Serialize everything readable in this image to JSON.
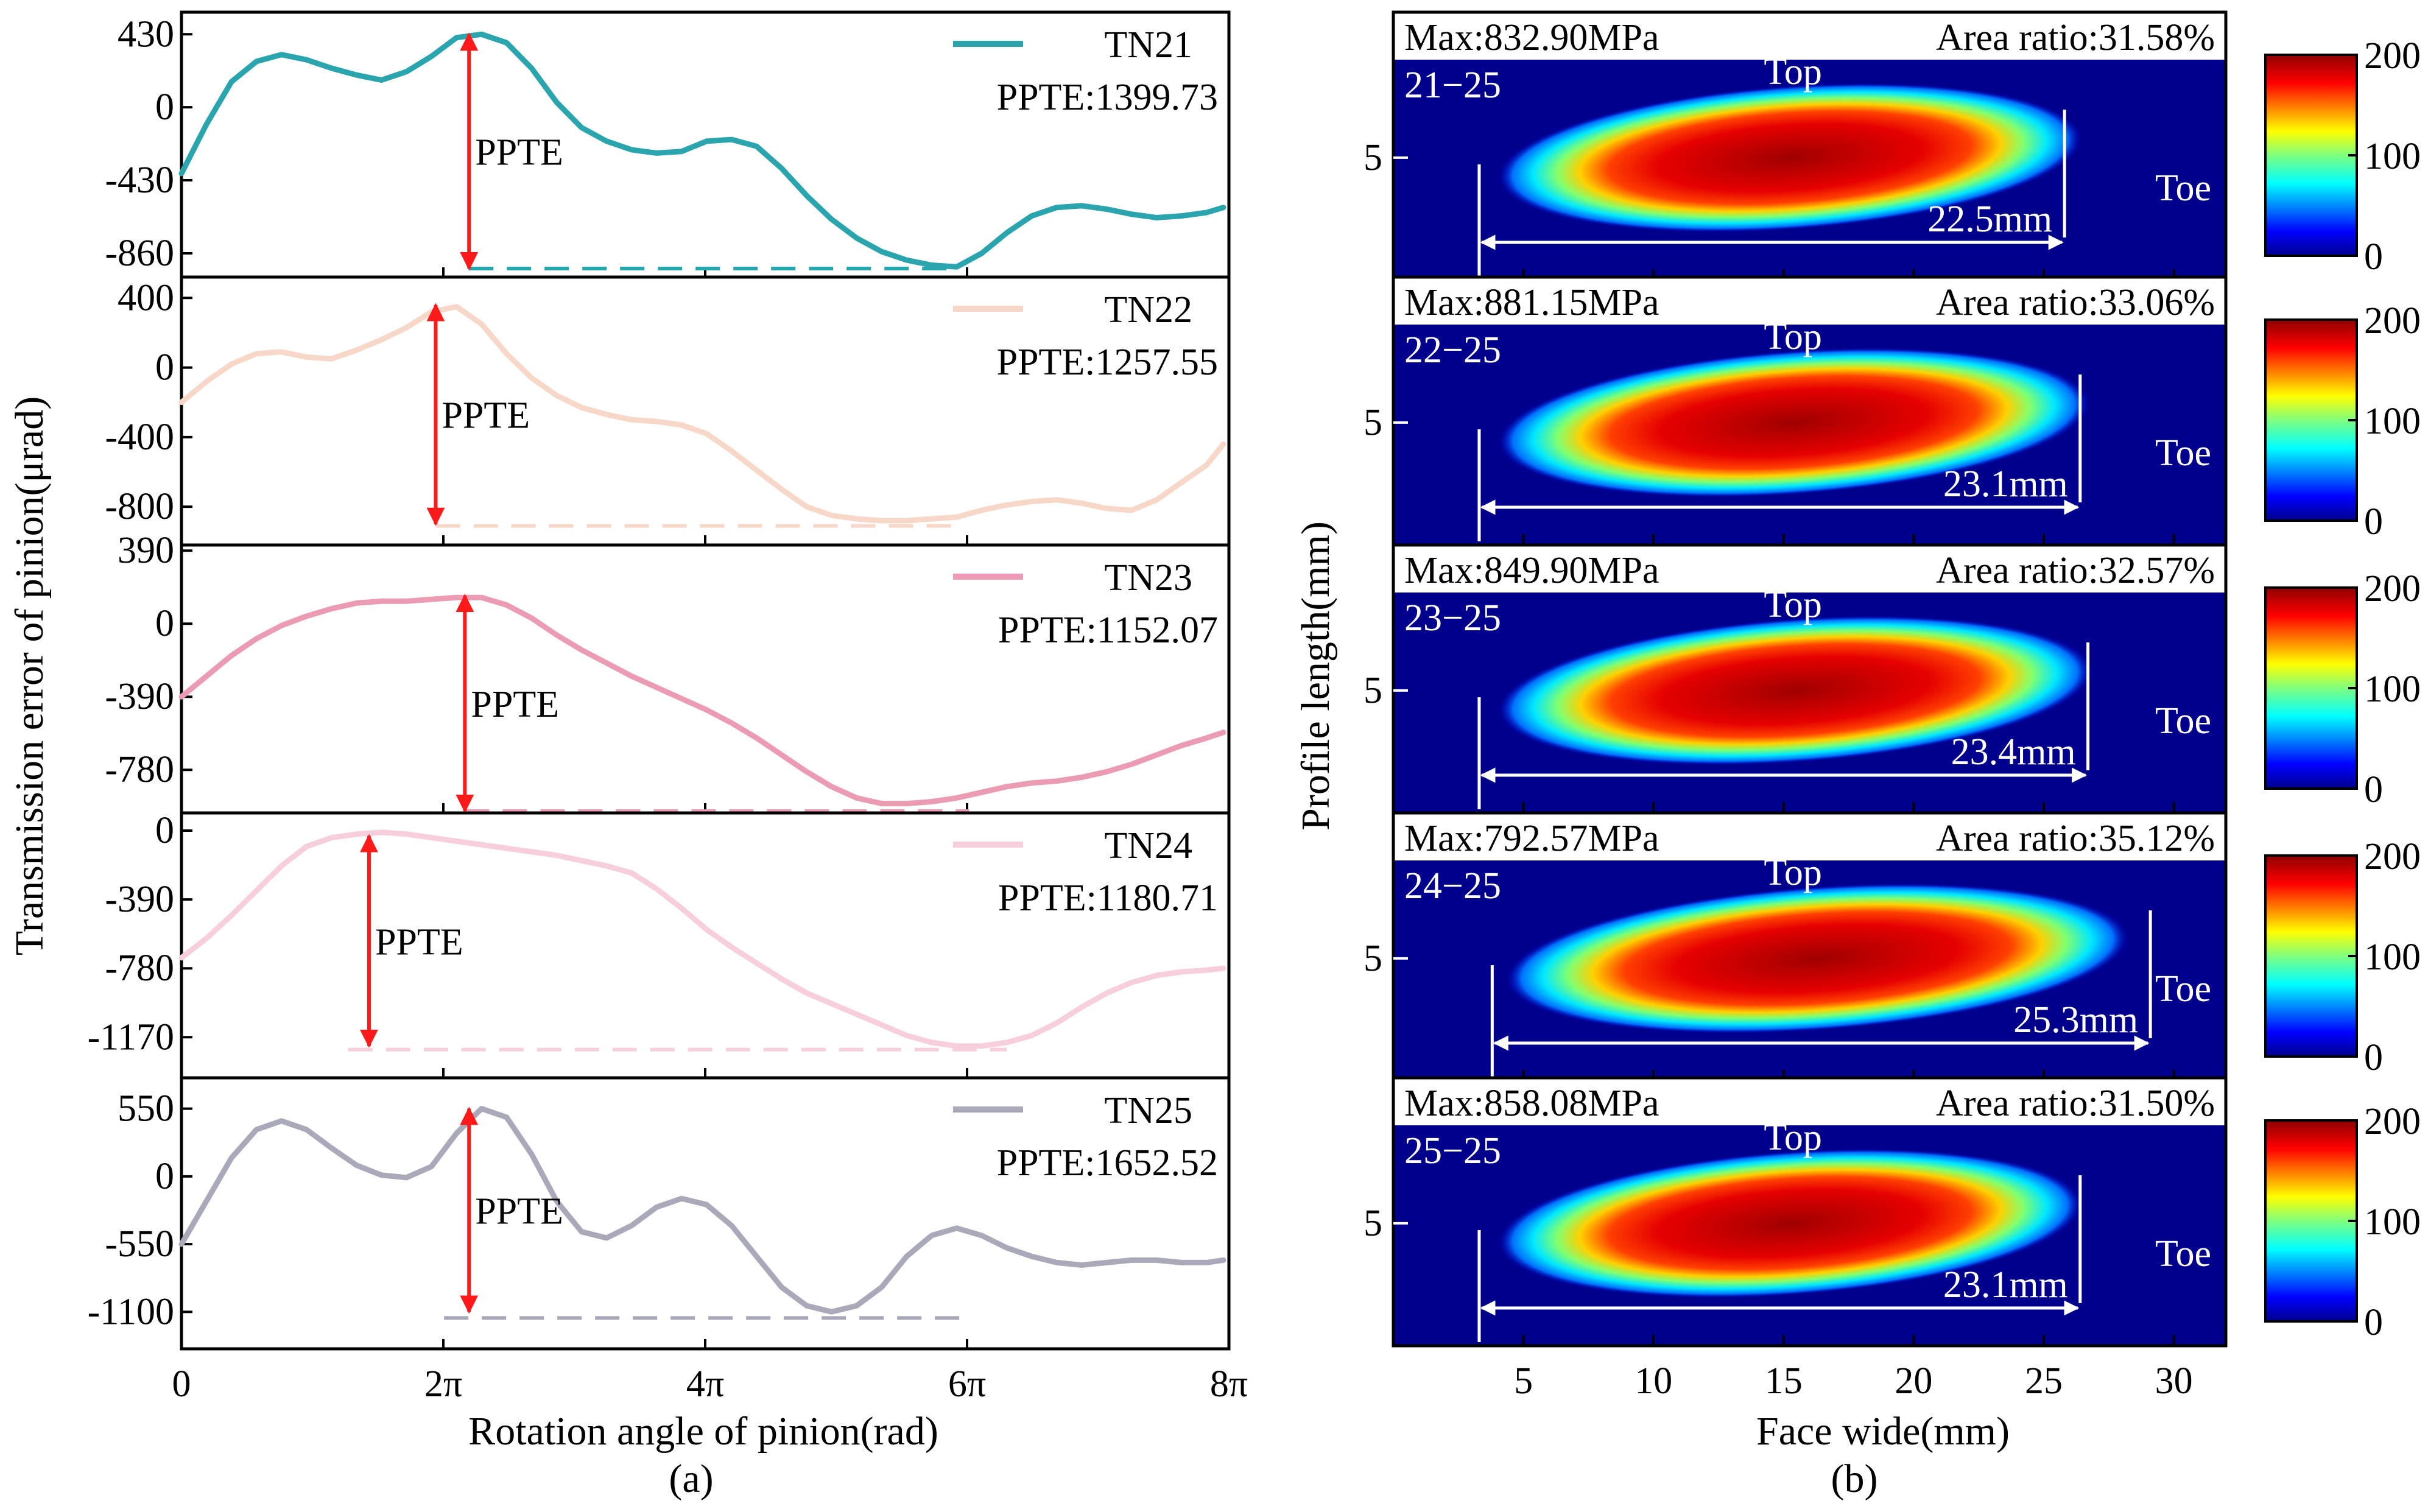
{
  "figure": {
    "label_a": "(a)",
    "label_b": "(b)"
  },
  "chart_data": [
    {
      "type": "line",
      "title": "",
      "xlabel": "Rotation angle of pinion(rad)",
      "ylabel": "Transmission error of pinion(μrad)",
      "xlim": [
        0,
        25.1327
      ],
      "xticks": [
        0,
        6.2832,
        12.5664,
        18.8496,
        25.1327
      ],
      "xtick_labels": [
        "0",
        "2π",
        "4π",
        "6π",
        "8π"
      ],
      "ppte_label": "PPTE",
      "panels": [
        {
          "name": "TN21",
          "color": "#2aa5ad",
          "ppte_text": "PPTE:1399.73",
          "yticks": [
            430,
            0,
            -430,
            -860
          ],
          "ytick_labels": [
            "430",
            "0",
            "-430",
            "-860"
          ],
          "ylim": [
            -1000,
            560
          ],
          "arrow_x": 6.9,
          "arrow_top": 430,
          "arrow_bottom": -950,
          "base_x": [
            6.9,
            18.6
          ],
          "base_y": -950,
          "curve_x": [
            0,
            0.6,
            1.2,
            1.8,
            2.4,
            3.0,
            3.6,
            4.2,
            4.8,
            5.4,
            6.0,
            6.6,
            7.2,
            7.8,
            8.4,
            9.0,
            9.6,
            10.2,
            10.8,
            11.4,
            12.0,
            12.6,
            13.2,
            13.8,
            14.4,
            15.0,
            15.6,
            16.2,
            16.8,
            17.4,
            18.0,
            18.6,
            19.2,
            19.8,
            20.4,
            21.0,
            21.6,
            22.2,
            22.8,
            23.4,
            24.0,
            24.6,
            25.0
          ],
          "curve_y": [
            -390,
            -100,
            150,
            270,
            310,
            280,
            230,
            190,
            160,
            210,
            300,
            410,
            430,
            380,
            230,
            30,
            -120,
            -200,
            -250,
            -270,
            -260,
            -200,
            -190,
            -230,
            -360,
            -520,
            -660,
            -770,
            -850,
            -900,
            -930,
            -940,
            -860,
            -740,
            -640,
            -590,
            -580,
            -600,
            -630,
            -650,
            -640,
            -620,
            -590
          ]
        },
        {
          "name": "TN22",
          "color": "#f7d8c8",
          "ppte_text": "PPTE:1257.55",
          "yticks": [
            400,
            0,
            -400,
            -800
          ],
          "ytick_labels": [
            "400",
            "0",
            "-400",
            "-800"
          ],
          "ylim": [
            -1020,
            520
          ],
          "arrow_x": 6.1,
          "arrow_top": 360,
          "arrow_bottom": -900,
          "base_x": [
            6.1,
            18.7
          ],
          "base_y": -910,
          "curve_x": [
            0,
            0.6,
            1.2,
            1.8,
            2.4,
            3.0,
            3.6,
            4.2,
            4.8,
            5.4,
            6.0,
            6.6,
            7.2,
            7.8,
            8.4,
            9.0,
            9.6,
            10.2,
            10.8,
            11.4,
            12.0,
            12.6,
            13.2,
            13.8,
            14.4,
            15.0,
            15.6,
            16.2,
            16.8,
            17.4,
            18.0,
            18.6,
            19.2,
            19.8,
            20.4,
            21.0,
            21.6,
            22.2,
            22.8,
            23.4,
            24.0,
            24.6,
            25.0
          ],
          "curve_y": [
            -200,
            -80,
            20,
            80,
            90,
            60,
            50,
            100,
            160,
            230,
            320,
            350,
            250,
            80,
            -60,
            -160,
            -230,
            -270,
            -300,
            -310,
            -330,
            -380,
            -480,
            -590,
            -700,
            -800,
            -850,
            -870,
            -880,
            -880,
            -870,
            -860,
            -820,
            -790,
            -770,
            -760,
            -780,
            -810,
            -820,
            -760,
            -660,
            -560,
            -440
          ]
        },
        {
          "name": "TN23",
          "color": "#ec9cb2",
          "ppte_text": "PPTE:1152.07",
          "yticks": [
            390,
            0,
            -390,
            -780
          ],
          "ytick_labels": [
            "390",
            "0",
            "-390",
            "-780"
          ],
          "ylim": [
            -1010,
            420
          ],
          "arrow_x": 6.8,
          "arrow_top": 150,
          "arrow_bottom": -1000,
          "base_x": [
            6.8,
            18.9
          ],
          "base_y": -1000,
          "curve_x": [
            0,
            0.6,
            1.2,
            1.8,
            2.4,
            3.0,
            3.6,
            4.2,
            4.8,
            5.4,
            6.0,
            6.6,
            7.2,
            7.8,
            8.4,
            9.0,
            9.6,
            10.2,
            10.8,
            11.4,
            12.0,
            12.6,
            13.2,
            13.8,
            14.4,
            15.0,
            15.6,
            16.2,
            16.8,
            17.4,
            18.0,
            18.6,
            19.2,
            19.8,
            20.4,
            21.0,
            21.6,
            22.2,
            22.8,
            23.4,
            24.0,
            24.6,
            25.0
          ],
          "curve_y": [
            -390,
            -280,
            -170,
            -80,
            -10,
            40,
            80,
            110,
            120,
            120,
            130,
            140,
            140,
            100,
            30,
            -60,
            -140,
            -210,
            -280,
            -340,
            -400,
            -460,
            -530,
            -610,
            -700,
            -790,
            -870,
            -930,
            -960,
            -960,
            -950,
            -930,
            -900,
            -870,
            -850,
            -840,
            -820,
            -790,
            -750,
            -700,
            -650,
            -610,
            -580
          ]
        },
        {
          "name": "TN24",
          "color": "#f7cfdc",
          "ppte_text": "PPTE:1180.71",
          "yticks": [
            0,
            -390,
            -780,
            -1170
          ],
          "ytick_labels": [
            "0",
            "-390",
            "-780",
            "-1170"
          ],
          "ylim": [
            -1400,
            100
          ],
          "arrow_x": 4.5,
          "arrow_top": -30,
          "arrow_bottom": -1220,
          "base_x": [
            4.0,
            19.8
          ],
          "base_y": -1240,
          "curve_x": [
            0,
            0.6,
            1.2,
            1.8,
            2.4,
            3.0,
            3.6,
            4.2,
            4.8,
            5.4,
            6.0,
            6.6,
            7.2,
            7.8,
            8.4,
            9.0,
            9.6,
            10.2,
            10.8,
            11.4,
            12.0,
            12.6,
            13.2,
            13.8,
            14.4,
            15.0,
            15.6,
            16.2,
            16.8,
            17.4,
            18.0,
            18.6,
            19.2,
            19.8,
            20.4,
            21.0,
            21.6,
            22.2,
            22.8,
            23.4,
            24.0,
            24.6,
            25.0
          ],
          "curve_y": [
            -720,
            -610,
            -480,
            -340,
            -200,
            -90,
            -40,
            -20,
            -10,
            -20,
            -40,
            -60,
            -80,
            -100,
            -120,
            -140,
            -170,
            -200,
            -240,
            -330,
            -440,
            -560,
            -660,
            -750,
            -840,
            -920,
            -980,
            -1040,
            -1100,
            -1160,
            -1200,
            -1220,
            -1220,
            -1200,
            -1160,
            -1090,
            -1000,
            -920,
            -860,
            -820,
            -800,
            -790,
            -780
          ]
        },
        {
          "name": "TN25",
          "color": "#a9a9ba",
          "ppte_text": "PPTE:1652.52",
          "yticks": [
            550,
            0,
            -550,
            -1100
          ],
          "ytick_labels": [
            "550",
            "0",
            "-550",
            "-1100"
          ],
          "ylim": [
            -1400,
            800
          ],
          "arrow_x": 6.9,
          "arrow_top": 550,
          "arrow_bottom": -1100,
          "base_x": [
            6.3,
            18.9
          ],
          "base_y": -1150,
          "curve_x": [
            0,
            0.6,
            1.2,
            1.8,
            2.4,
            3.0,
            3.6,
            4.2,
            4.8,
            5.4,
            6.0,
            6.6,
            7.2,
            7.8,
            8.4,
            9.0,
            9.6,
            10.2,
            10.8,
            11.4,
            12.0,
            12.6,
            13.2,
            13.8,
            14.4,
            15.0,
            15.6,
            16.2,
            16.8,
            17.4,
            18.0,
            18.6,
            19.2,
            19.8,
            20.4,
            21.0,
            21.6,
            22.2,
            22.8,
            23.4,
            24.0,
            24.6,
            25.0
          ],
          "curve_y": [
            -550,
            -200,
            150,
            380,
            450,
            380,
            230,
            90,
            10,
            -10,
            80,
            350,
            550,
            480,
            180,
            -200,
            -450,
            -500,
            -400,
            -250,
            -180,
            -230,
            -400,
            -650,
            -900,
            -1050,
            -1100,
            -1050,
            -900,
            -650,
            -480,
            -420,
            -480,
            -580,
            -650,
            -700,
            -720,
            -700,
            -680,
            -680,
            -700,
            -700,
            -680
          ]
        }
      ]
    },
    {
      "type": "heatmap",
      "title": "",
      "xlabel": "Face wide(mm)",
      "ylabel": "Profile length(mm)",
      "xlim": [
        0,
        32
      ],
      "xticks": [
        5,
        10,
        15,
        20,
        25,
        30
      ],
      "xtick_labels": [
        "5",
        "10",
        "15",
        "20",
        "25",
        "30"
      ],
      "ylim": [
        0,
        9
      ],
      "yticks": [
        5
      ],
      "ytick_labels": [
        "5"
      ],
      "colorbar": {
        "min": 0,
        "max": 200,
        "ticks": [
          "0",
          "100",
          "200"
        ]
      },
      "labels": {
        "top": "Top",
        "toe": "Toe"
      },
      "panels": [
        {
          "id": "21−25",
          "max_text": "Max:832.90MPa",
          "area_text": "Area ratio:31.58%",
          "length_text": "22.5mm",
          "contact_x": [
            4.0,
            26.5
          ],
          "dim_x": [
            3.3,
            25.8
          ],
          "peak": 832.9
        },
        {
          "id": "22−25",
          "max_text": "Max:881.15MPa",
          "area_text": "Area ratio:33.06%",
          "length_text": "23.1mm",
          "contact_x": [
            4.0,
            26.8
          ],
          "dim_x": [
            3.3,
            26.4
          ],
          "peak": 881.15
        },
        {
          "id": "23−25",
          "max_text": "Max:849.90MPa",
          "area_text": "Area ratio:32.57%",
          "length_text": "23.4mm",
          "contact_x": [
            4.0,
            26.9
          ],
          "dim_x": [
            3.3,
            26.7
          ],
          "peak": 849.9
        },
        {
          "id": "24−25",
          "max_text": "Max:792.57MPa",
          "area_text": "Area ratio:35.12%",
          "length_text": "25.3mm",
          "contact_x": [
            4.3,
            28.3
          ],
          "dim_x": [
            3.8,
            29.1
          ],
          "peak": 792.57
        },
        {
          "id": "25−25",
          "max_text": "Max:858.08MPa",
          "area_text": "Area ratio:31.50%",
          "length_text": "23.1mm",
          "contact_x": [
            4.0,
            26.5
          ],
          "dim_x": [
            3.3,
            26.4
          ],
          "peak": 858.08
        }
      ]
    }
  ]
}
